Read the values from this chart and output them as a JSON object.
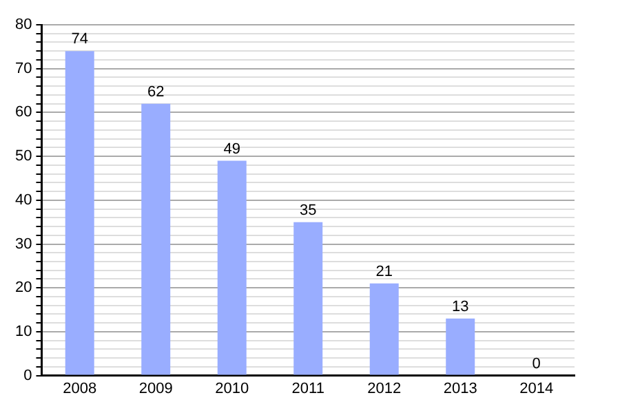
{
  "chart_data": {
    "type": "bar",
    "categories": [
      "2008",
      "2009",
      "2010",
      "2011",
      "2012",
      "2013",
      "2014"
    ],
    "values": [
      74,
      62,
      49,
      35,
      21,
      13,
      0
    ],
    "color": "#99adff",
    "data_labels": true,
    "grid": "y",
    "ylim": [
      0,
      80
    ],
    "yticks": [
      0,
      {
        "value": 2,
        "label": null
      },
      {
        "value": 4,
        "label": null
      },
      {
        "value": 6,
        "label": null
      },
      {
        "value": 8,
        "label": null
      },
      10,
      {
        "value": 12,
        "label": null
      },
      {
        "value": 14,
        "label": null
      },
      {
        "value": 16,
        "label": null
      },
      {
        "value": 18,
        "label": null
      },
      20,
      {
        "value": 22,
        "label": null
      },
      {
        "value": 24,
        "label": null
      },
      {
        "value": 26,
        "label": null
      },
      {
        "value": 28,
        "label": null
      },
      30,
      {
        "value": 32,
        "label": null
      },
      {
        "value": 34,
        "label": null
      },
      {
        "value": 36,
        "label": null
      },
      {
        "value": 38,
        "label": null
      },
      40,
      {
        "value": 42,
        "label": null
      },
      {
        "value": 44,
        "label": null
      },
      {
        "value": 46,
        "label": null
      },
      {
        "value": 48,
        "label": null
      },
      50,
      {
        "value": 52,
        "label": null
      },
      {
        "value": 54,
        "label": null
      },
      {
        "value": 56,
        "label": null
      },
      {
        "value": 58,
        "label": null
      },
      60,
      {
        "value": 62,
        "label": null
      },
      {
        "value": 64,
        "label": null
      },
      {
        "value": 66,
        "label": null
      },
      {
        "value": 68,
        "label": null
      },
      70,
      {
        "value": 72,
        "label": null
      },
      {
        "value": 74,
        "label": null
      },
      {
        "value": 76,
        "label": null
      },
      {
        "value": 78,
        "label": null
      },
      80
    ]
  }
}
